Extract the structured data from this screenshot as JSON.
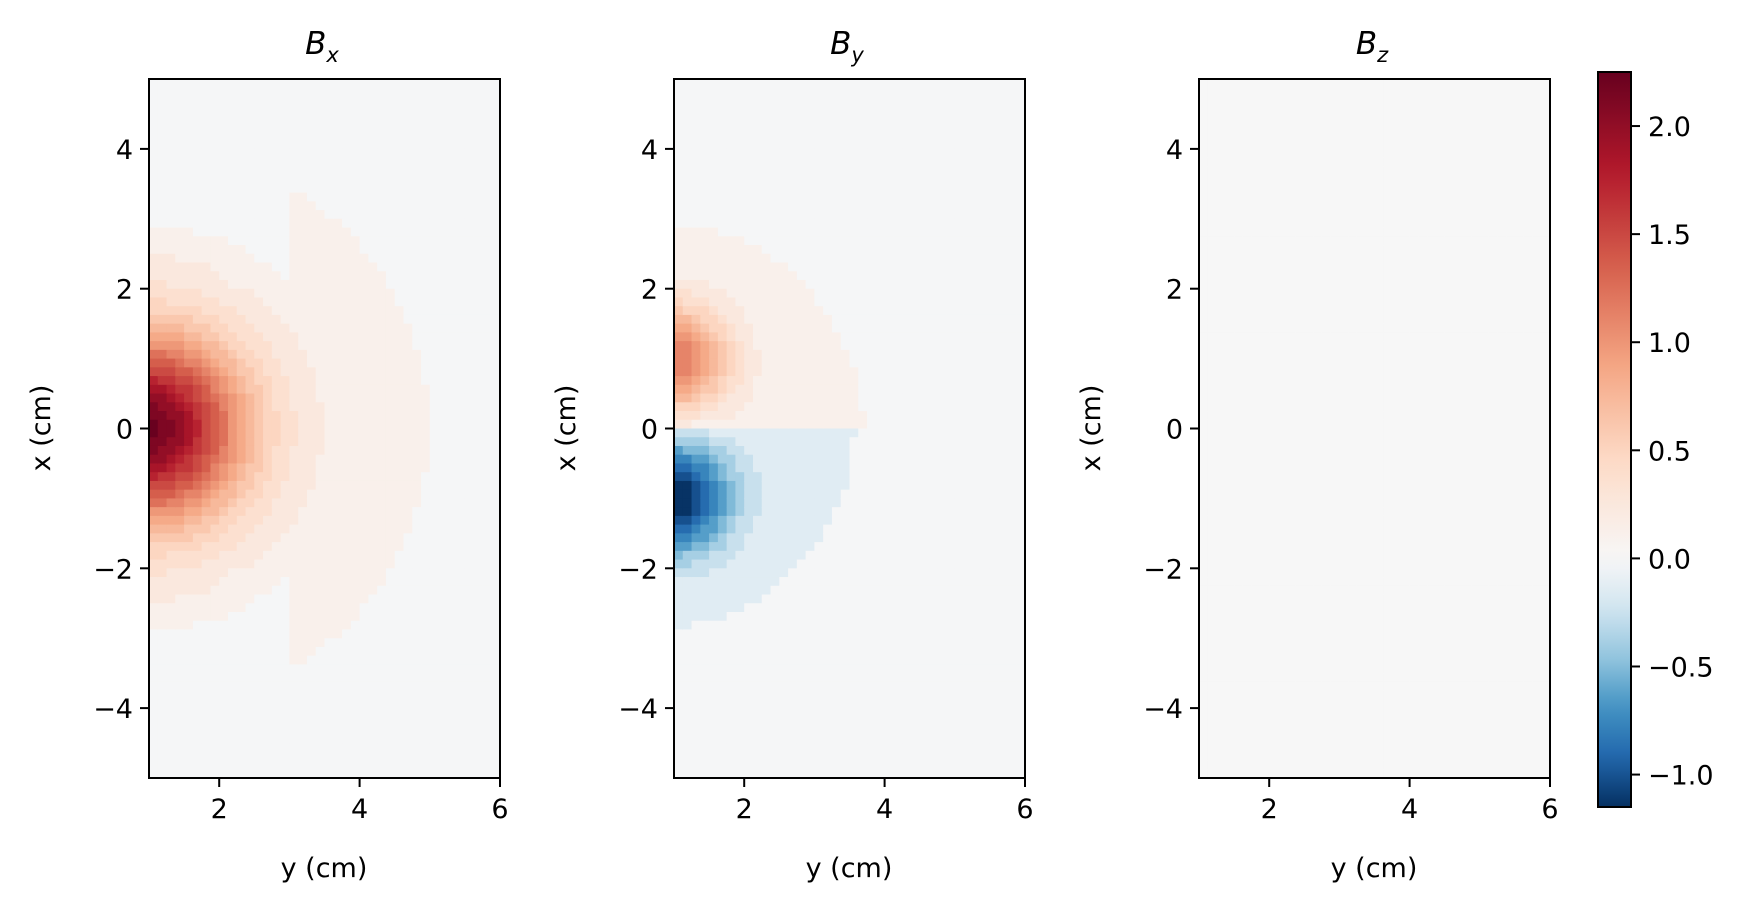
{
  "chart_data": [
    {
      "type": "heatmap",
      "title": "B",
      "title_sub": "x",
      "xlabel": "y (cm)",
      "ylabel": "x (cm)",
      "xlim": [
        1,
        6
      ],
      "ylim": [
        -5,
        5
      ],
      "xticks": [
        {
          "v": 2,
          "t": "2"
        },
        {
          "v": 4,
          "t": "4"
        },
        {
          "v": 6,
          "t": "6"
        }
      ],
      "yticks": [
        {
          "v": 4,
          "t": "4"
        },
        {
          "v": 2,
          "t": "2"
        },
        {
          "v": 0,
          "t": "0"
        },
        {
          "v": -2,
          "t": "−2"
        },
        {
          "v": -4,
          "t": "−4"
        }
      ],
      "field": "bx",
      "peak": {
        "y": 1.0,
        "x": 0.0,
        "value": 2.2
      }
    },
    {
      "type": "heatmap",
      "title": "B",
      "title_sub": "y",
      "xlabel": "y (cm)",
      "ylabel": "x (cm)",
      "xlim": [
        1,
        6
      ],
      "ylim": [
        -5,
        5
      ],
      "xticks": [
        {
          "v": 2,
          "t": "2"
        },
        {
          "v": 4,
          "t": "4"
        },
        {
          "v": 6,
          "t": "6"
        }
      ],
      "yticks": [
        {
          "v": 4,
          "t": "4"
        },
        {
          "v": 2,
          "t": "2"
        },
        {
          "v": 0,
          "t": "0"
        },
        {
          "v": -2,
          "t": "−2"
        },
        {
          "v": -4,
          "t": "−4"
        }
      ],
      "field": "by",
      "peak_positive": {
        "y": 1.0,
        "x": 1.0,
        "value": 1.1
      },
      "peak_negative": {
        "y": 1.0,
        "x": -1.0,
        "value": -1.1
      }
    },
    {
      "type": "heatmap",
      "title": "B",
      "title_sub": "z",
      "xlabel": "y (cm)",
      "ylabel": "x (cm)",
      "xlim": [
        1,
        6
      ],
      "ylim": [
        -5,
        5
      ],
      "xticks": [
        {
          "v": 2,
          "t": "2"
        },
        {
          "v": 4,
          "t": "4"
        },
        {
          "v": 6,
          "t": "6"
        }
      ],
      "yticks": [
        {
          "v": 4,
          "t": "4"
        },
        {
          "v": 2,
          "t": "2"
        },
        {
          "v": 0,
          "t": "0"
        },
        {
          "v": -2,
          "t": "−2"
        },
        {
          "v": -4,
          "t": "−4"
        }
      ],
      "field": "bz",
      "uniform_value": 0.0
    }
  ],
  "colorbar": {
    "cmap": "RdBu_r",
    "vmin": -1.15,
    "vmax": 2.25,
    "ticks": [
      {
        "v": 2.0,
        "t": "2.0"
      },
      {
        "v": 1.5,
        "t": "1.5"
      },
      {
        "v": 1.0,
        "t": "1.0"
      },
      {
        "v": 0.5,
        "t": "0.5"
      },
      {
        "v": 0.0,
        "t": "0.0"
      },
      {
        "v": -0.5,
        "t": "−0.5"
      },
      {
        "v": -1.0,
        "t": "−1.0"
      }
    ]
  }
}
